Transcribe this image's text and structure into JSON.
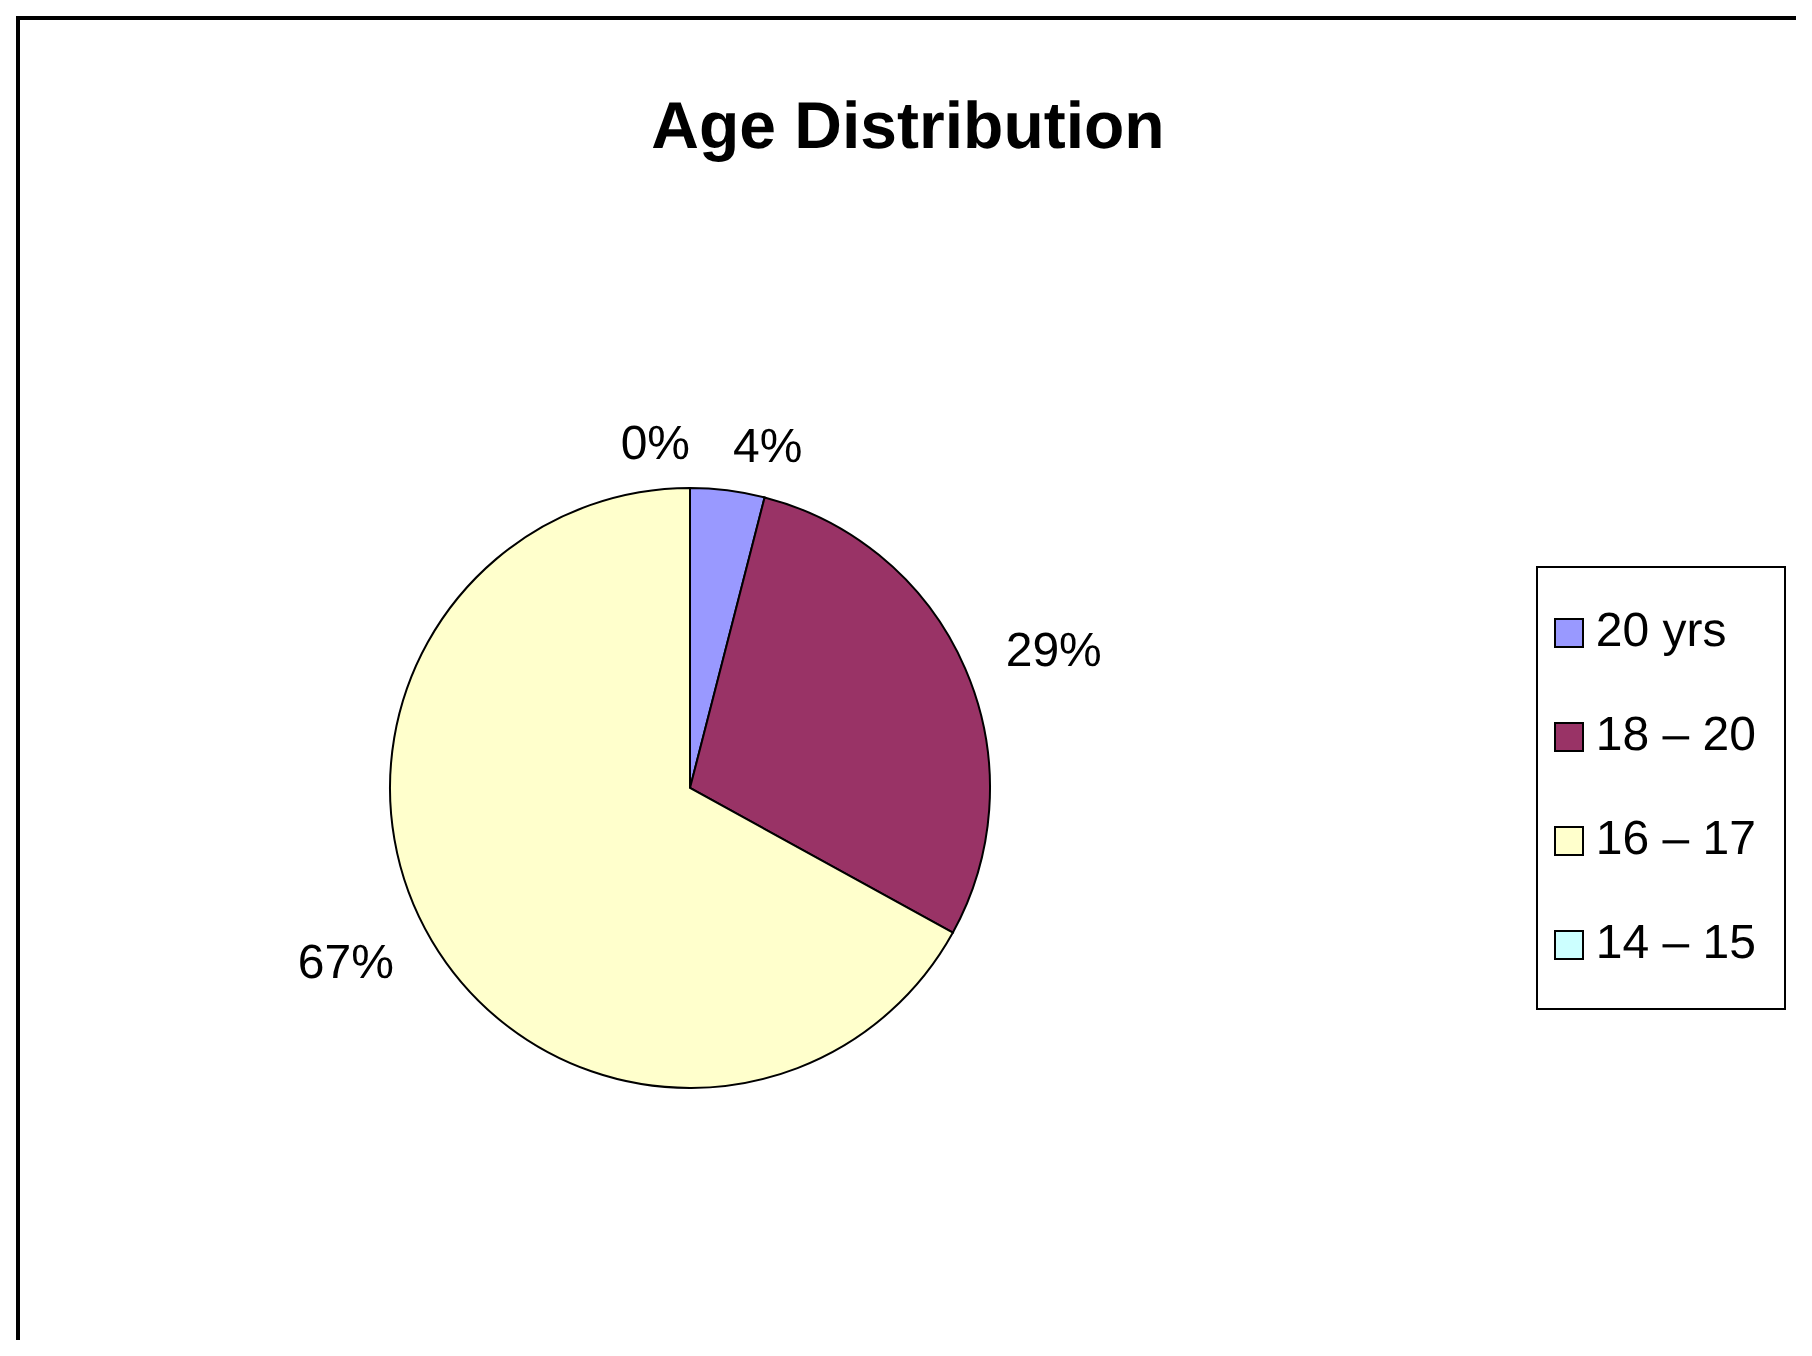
{
  "chart_data": {
    "type": "pie",
    "title": "Age Distribution",
    "categories": [
      "20 yrs",
      "18 – 20",
      "16 – 17",
      "14 – 15"
    ],
    "values": [
      4,
      29,
      67,
      0
    ],
    "colors": [
      "#9999ff",
      "#993366",
      "#ffffcc",
      "#ccffff"
    ],
    "value_labels": [
      "4%",
      "29%",
      "67%",
      "0%"
    ],
    "legend": "right"
  }
}
